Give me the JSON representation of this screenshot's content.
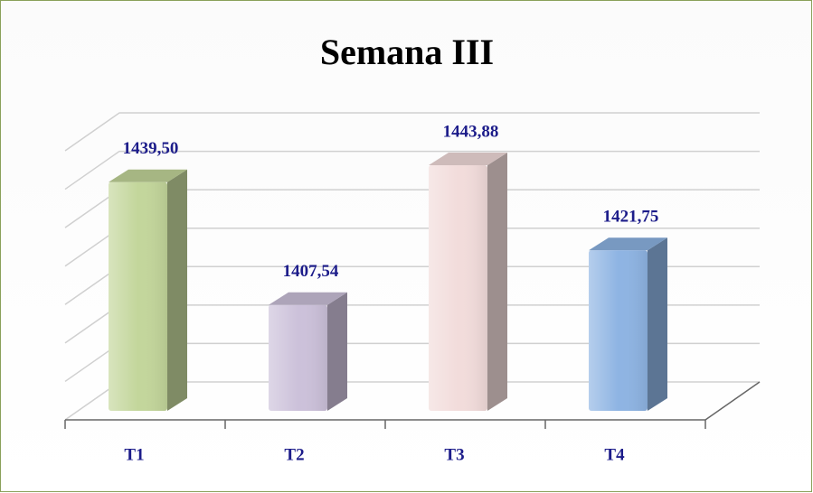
{
  "chart_data": {
    "type": "bar",
    "title": "Semana III",
    "categories": [
      "T1",
      "T2",
      "T3",
      "T4"
    ],
    "values": [
      1439.5,
      1407.54,
      1443.88,
      1421.75
    ],
    "value_labels": [
      "1439,50",
      "1407,54",
      "1443,88",
      "1421,75"
    ],
    "colors": [
      "#c3d69b",
      "#ccc1da",
      "#f2dcdb",
      "#8eb4e3"
    ],
    "ylim": [
      1380,
      1450
    ],
    "yticks": [
      1380,
      1390,
      1400,
      1410,
      1420,
      1430,
      1440,
      1450
    ],
    "grid": true
  }
}
